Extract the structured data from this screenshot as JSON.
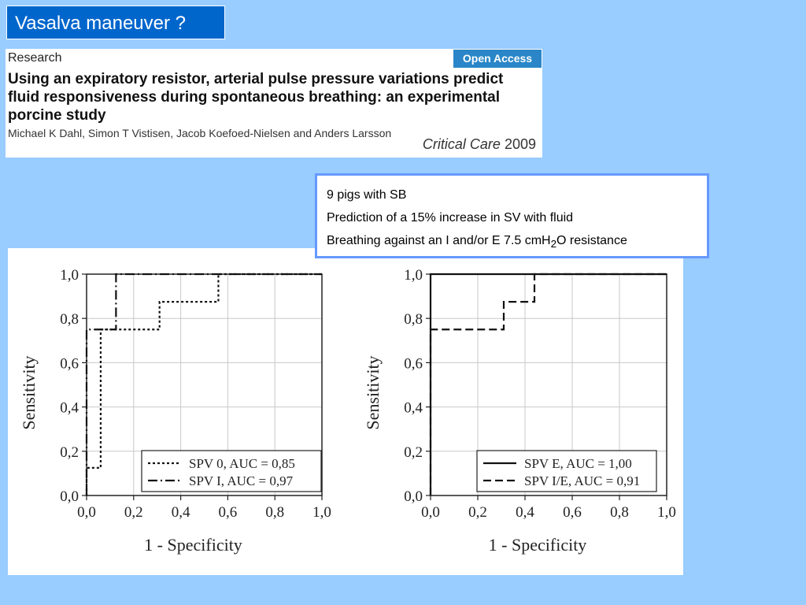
{
  "slide": {
    "title": "Vasalva maneuver ?"
  },
  "paper": {
    "section": "Research",
    "open_access": "Open Access",
    "title": "Using an expiratory resistor, arterial pulse pressure variations predict fluid responsiveness during spontaneous breathing: an experimental porcine study",
    "authors": "Michael K Dahl, Simon T Vistisen, Jacob Koefoed-Nielsen and Anders Larsson",
    "journal": "Critical Care",
    "year": "2009"
  },
  "info": {
    "line1": "9 pigs with SB",
    "line2": "Prediction of a 15% increase in SV with fluid",
    "line3_pre": "Breathing against an I and/or E 7.5 cmH",
    "line3_sub": "2",
    "line3_post": "O resistance"
  },
  "chart_data": [
    {
      "type": "line",
      "xlabel": "1 - Specificity",
      "ylabel": "Sensitivity",
      "xlim": [
        0,
        1
      ],
      "ylim": [
        0,
        1
      ],
      "x_ticks": [
        "0,0",
        "0,2",
        "0,4",
        "0,6",
        "0,8",
        "1,0"
      ],
      "y_ticks": [
        "0,0",
        "0,2",
        "0,4",
        "0,6",
        "0,8",
        "1,0"
      ],
      "grid": true,
      "legend": "bottom-right",
      "series": [
        {
          "name": "SPV 0, AUC = 0,85",
          "style": "dotted",
          "x": [
            0,
            0,
            0.06,
            0.06,
            0.31,
            0.31,
            0.56,
            0.56,
            1.0
          ],
          "y": [
            0,
            0.125,
            0.125,
            0.75,
            0.75,
            0.875,
            0.875,
            1.0,
            1.0
          ]
        },
        {
          "name": "SPV I, AUC = 0,97",
          "style": "dash-dot",
          "x": [
            0,
            0,
            0.125,
            0.125,
            1.0
          ],
          "y": [
            0,
            0.75,
            0.75,
            1.0,
            1.0
          ]
        }
      ]
    },
    {
      "type": "line",
      "xlabel": "1 - Specificity",
      "ylabel": "Sensitivity",
      "xlim": [
        0,
        1
      ],
      "ylim": [
        0,
        1
      ],
      "x_ticks": [
        "0,0",
        "0,2",
        "0,4",
        "0,6",
        "0,8",
        "1,0"
      ],
      "y_ticks": [
        "0,0",
        "0,2",
        "0,4",
        "0,6",
        "0,8",
        "1,0"
      ],
      "grid": true,
      "legend": "bottom-right",
      "series": [
        {
          "name": "SPV E, AUC = 1,00",
          "style": "solid",
          "x": [
            0,
            0,
            1.0
          ],
          "y": [
            0,
            1.0,
            1.0
          ]
        },
        {
          "name": "SPV I/E, AUC = 0,91",
          "style": "dashed",
          "x": [
            0,
            0,
            0.31,
            0.31,
            0.44,
            0.44,
            1.0
          ],
          "y": [
            0,
            0.75,
            0.75,
            0.875,
            0.875,
            1.0,
            1.0
          ]
        }
      ]
    }
  ]
}
